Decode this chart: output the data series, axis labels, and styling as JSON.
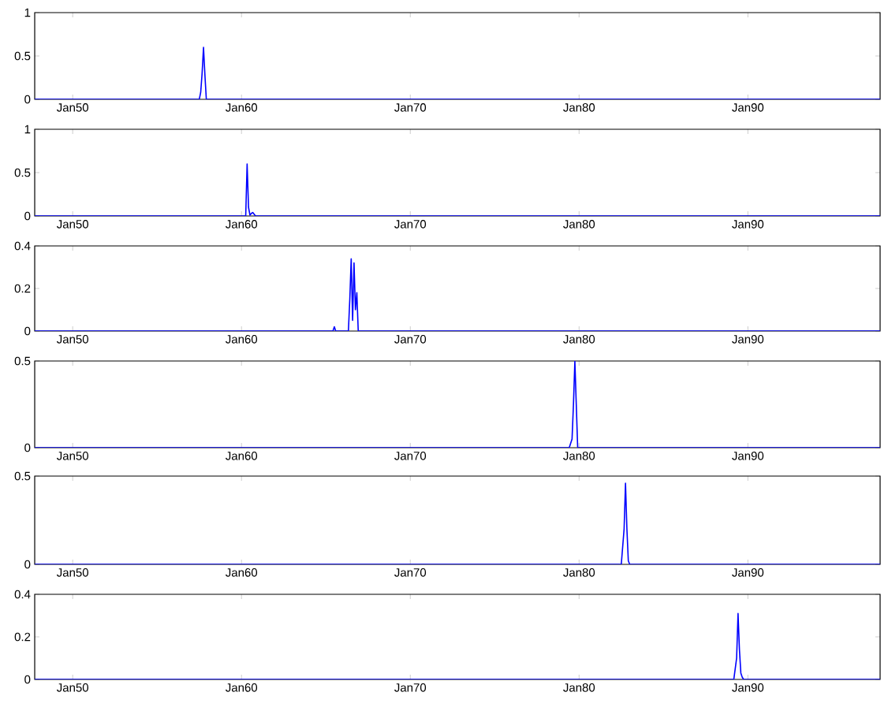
{
  "chart_data": [
    {
      "type": "line",
      "color": "#0000ff",
      "x": [
        "1947-10",
        "1957-07",
        "1957-08",
        "1957-09",
        "1957-10",
        "1957-11",
        "1957-12",
        "1997-11"
      ],
      "values": [
        0,
        0,
        0.08,
        0.3,
        0.6,
        0.28,
        0,
        0
      ],
      "xlim": [
        "1947-10",
        "1997-11"
      ],
      "xticks": [
        {
          "value": "1950-01",
          "label": "Jan50"
        },
        {
          "value": "1960-01",
          "label": "Jan60"
        },
        {
          "value": "1970-01",
          "label": "Jan70"
        },
        {
          "value": "1980-01",
          "label": "Jan80"
        },
        {
          "value": "1990-01",
          "label": "Jan90"
        }
      ],
      "ylim": [
        0,
        1
      ],
      "yticks": [
        0,
        0.5,
        1
      ]
    },
    {
      "type": "line",
      "color": "#0000ff",
      "x": [
        "1947-10",
        "1960-04",
        "1960-05",
        "1960-06",
        "1960-07",
        "1960-08",
        "1960-09",
        "1960-10",
        "1960-11",
        "1997-11"
      ],
      "values": [
        0,
        0,
        0.6,
        0.1,
        0.01,
        0.03,
        0.04,
        0.02,
        0,
        0
      ],
      "xlim": [
        "1947-10",
        "1997-11"
      ],
      "xticks": [
        {
          "value": "1950-01",
          "label": "Jan50"
        },
        {
          "value": "1960-01",
          "label": "Jan60"
        },
        {
          "value": "1970-01",
          "label": "Jan70"
        },
        {
          "value": "1980-01",
          "label": "Jan80"
        },
        {
          "value": "1990-01",
          "label": "Jan90"
        }
      ],
      "ylim": [
        0,
        1
      ],
      "yticks": [
        0,
        0.5,
        1
      ]
    },
    {
      "type": "line",
      "color": "#0000ff",
      "x": [
        "1947-10",
        "1965-06",
        "1965-07",
        "1965-08",
        "1966-05",
        "1966-06",
        "1966-07",
        "1966-08",
        "1966-09",
        "1966-10",
        "1966-11",
        "1966-12",
        "1997-11"
      ],
      "values": [
        0,
        0,
        0.02,
        0,
        0,
        0.15,
        0.34,
        0.05,
        0.32,
        0.1,
        0.18,
        0,
        0
      ],
      "xlim": [
        "1947-10",
        "1997-11"
      ],
      "xticks": [
        {
          "value": "1950-01",
          "label": "Jan50"
        },
        {
          "value": "1960-01",
          "label": "Jan60"
        },
        {
          "value": "1970-01",
          "label": "Jan70"
        },
        {
          "value": "1980-01",
          "label": "Jan80"
        },
        {
          "value": "1990-01",
          "label": "Jan90"
        }
      ],
      "ylim": [
        0,
        0.4
      ],
      "yticks": [
        0,
        0.2,
        0.4
      ]
    },
    {
      "type": "line",
      "color": "#0000ff",
      "x": [
        "1947-10",
        "1979-06",
        "1979-08",
        "1979-09",
        "1979-10",
        "1979-11",
        "1979-12",
        "1997-11"
      ],
      "values": [
        0,
        0,
        0.05,
        0.25,
        0.5,
        0.25,
        0,
        0
      ],
      "xlim": [
        "1947-10",
        "1997-11"
      ],
      "xticks": [
        {
          "value": "1950-01",
          "label": "Jan50"
        },
        {
          "value": "1960-01",
          "label": "Jan60"
        },
        {
          "value": "1970-01",
          "label": "Jan70"
        },
        {
          "value": "1980-01",
          "label": "Jan80"
        },
        {
          "value": "1990-01",
          "label": "Jan90"
        }
      ],
      "ylim": [
        0,
        0.5
      ],
      "yticks": [
        0,
        0.5
      ]
    },
    {
      "type": "line",
      "color": "#0000ff",
      "x": [
        "1947-10",
        "1982-07",
        "1982-09",
        "1982-10",
        "1982-11",
        "1982-12",
        "1983-01",
        "1997-11"
      ],
      "values": [
        0,
        0,
        0.2,
        0.46,
        0.2,
        0.02,
        0,
        0
      ],
      "xlim": [
        "1947-10",
        "1997-11"
      ],
      "xticks": [
        {
          "value": "1950-01",
          "label": "Jan50"
        },
        {
          "value": "1960-01",
          "label": "Jan60"
        },
        {
          "value": "1970-01",
          "label": "Jan70"
        },
        {
          "value": "1980-01",
          "label": "Jan80"
        },
        {
          "value": "1990-01",
          "label": "Jan90"
        }
      ],
      "ylim": [
        0,
        0.5
      ],
      "yticks": [
        0,
        0.5
      ]
    },
    {
      "type": "line",
      "color": "#0000ff",
      "x": [
        "1947-10",
        "1989-03",
        "1989-05",
        "1989-06",
        "1989-07",
        "1989-08",
        "1989-09",
        "1989-10",
        "1997-11"
      ],
      "values": [
        0,
        0,
        0.1,
        0.31,
        0.14,
        0.03,
        0.01,
        0,
        0
      ],
      "xlim": [
        "1947-10",
        "1997-11"
      ],
      "xticks": [
        {
          "value": "1950-01",
          "label": "Jan50"
        },
        {
          "value": "1960-01",
          "label": "Jan60"
        },
        {
          "value": "1970-01",
          "label": "Jan70"
        },
        {
          "value": "1980-01",
          "label": "Jan80"
        },
        {
          "value": "1990-01",
          "label": "Jan90"
        }
      ],
      "ylim": [
        0,
        0.4
      ],
      "yticks": [
        0,
        0.2,
        0.4
      ]
    }
  ]
}
